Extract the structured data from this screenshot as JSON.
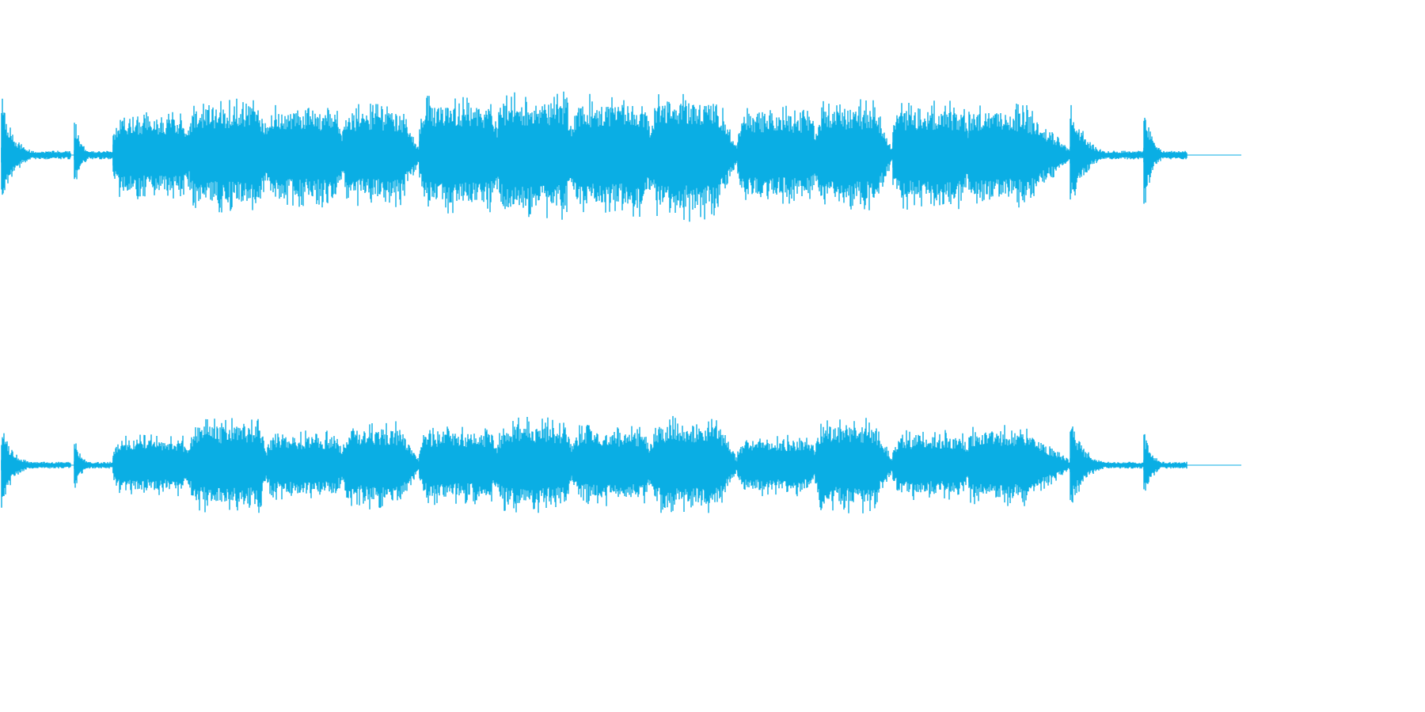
{
  "waveform": {
    "channels": [
      {
        "name": "upper-channel",
        "color": "#0aaee4",
        "segments": [
          [
            0.0,
            0.9,
            0.07,
            "piano-sparse-onset"
          ],
          [
            0.55,
            0.5,
            0.04,
            "sparse-tail"
          ],
          [
            0.85,
            0.8,
            0.2,
            "loud-phrase"
          ],
          [
            2.3,
            0.8,
            0.2,
            "loud-phrase"
          ],
          [
            3.45,
            0.8,
            0.2,
            "loud-phrase"
          ],
          [
            4.55,
            0.8,
            0.2,
            "loud-phrase"
          ],
          [
            5.8,
            0.8,
            0.12,
            "sharp-attack"
          ],
          [
            6.3,
            0.8,
            0.12,
            "sharp-attack"
          ],
          [
            8.1,
            0.85,
            0.1,
            "sharp-attack"
          ],
          [
            8.55,
            0.7,
            0.04,
            "tail-decay"
          ]
        ]
      },
      {
        "name": "lower-channel",
        "color": "#0aaee4",
        "segments": [
          [
            0.0,
            0.7,
            0.06,
            "piano-sparse-onset"
          ],
          [
            0.55,
            0.45,
            0.04,
            "sparse-tail"
          ],
          [
            0.85,
            0.7,
            0.2,
            "loud-phrase"
          ],
          [
            2.3,
            0.75,
            0.2,
            "loud-phrase"
          ],
          [
            3.45,
            0.75,
            0.2,
            "loud-phrase"
          ],
          [
            4.55,
            0.75,
            0.2,
            "loud-phrase"
          ],
          [
            5.8,
            0.9,
            0.12,
            "sharp-attack"
          ],
          [
            6.3,
            0.7,
            0.12,
            "sharp-attack"
          ],
          [
            8.1,
            0.9,
            0.1,
            "sharp-attack"
          ],
          [
            8.55,
            0.6,
            0.04,
            "tail-decay"
          ]
        ]
      }
    ]
  }
}
